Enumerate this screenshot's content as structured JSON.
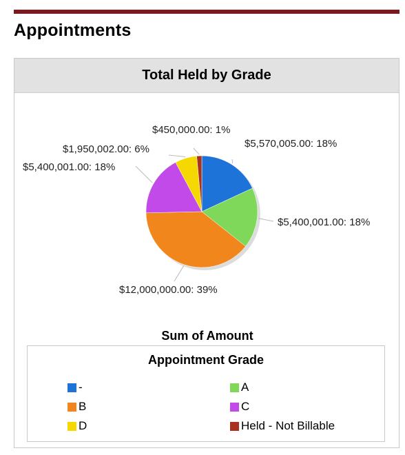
{
  "section": {
    "title": "Appointments"
  },
  "panel": {
    "title": "Total Held by Grade"
  },
  "chart_data": {
    "type": "pie",
    "title": "Total Held by Grade",
    "measure_label": "Sum of Amount",
    "legend_title": "Appointment Grade",
    "legend_position": "bottom",
    "slices": [
      {
        "name": "-",
        "value": 5570005.0,
        "label": "$5,570,005.00: 18%",
        "color": "#1e73d8"
      },
      {
        "name": "A",
        "value": 5400001.0,
        "label": "$5,400,001.00: 18%",
        "color": "#7fd85a"
      },
      {
        "name": "B",
        "value": 12000000.0,
        "label": "$12,000,000.00: 39%",
        "color": "#f0861c"
      },
      {
        "name": "C",
        "value": 5400001.0,
        "label": "$5,400,001.00: 18%",
        "color": "#c24ae8"
      },
      {
        "name": "D",
        "value": 1950002.0,
        "label": "$1,950,002.00: 6%",
        "color": "#f5d800"
      },
      {
        "name": "Held - Not Billable",
        "value": 450000.0,
        "label": "$450,000.00: 1%",
        "color": "#a8321e"
      }
    ]
  }
}
